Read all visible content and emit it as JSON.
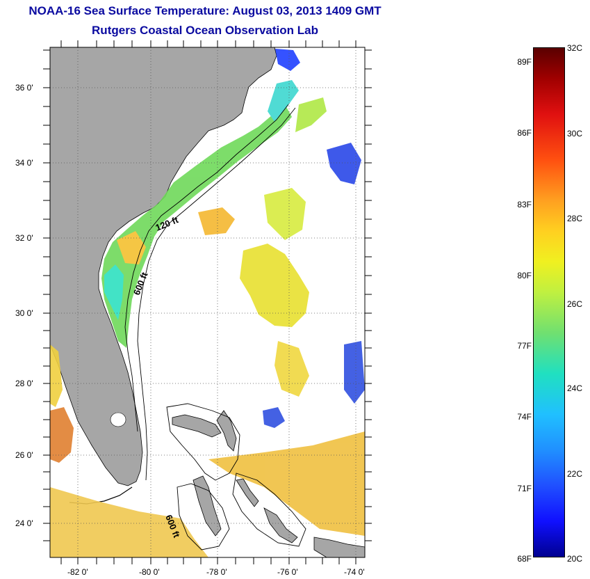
{
  "header": {
    "title": "NOAA-16 Sea Surface Temperature:  August 03, 2013 1409 GMT",
    "subtitle": "Rutgers Coastal Ocean Observation Lab"
  },
  "map": {
    "y_ticks": [
      "36 0'",
      "34 0'",
      "32 0'",
      "30 0'",
      "28 0'",
      "26 0'",
      "24 0'"
    ],
    "x_ticks": [
      "-82 0'",
      "-80 0'",
      "-78 0'",
      "-76 0'",
      "-74 0'"
    ],
    "contour_labels": [
      "120 ft",
      "600 ft",
      "600 ft"
    ],
    "colors": {
      "land": "#a6a6a6",
      "ocean_nodata": "#ffffff"
    }
  },
  "colorbar": {
    "fahrenheit": [
      "89F",
      "86F",
      "83F",
      "80F",
      "77F",
      "74F",
      "71F",
      "68F"
    ],
    "celsius": [
      "32C",
      "30C",
      "28C",
      "26C",
      "24C",
      "22C",
      "20C"
    ],
    "range_c": [
      20,
      32
    ]
  }
}
